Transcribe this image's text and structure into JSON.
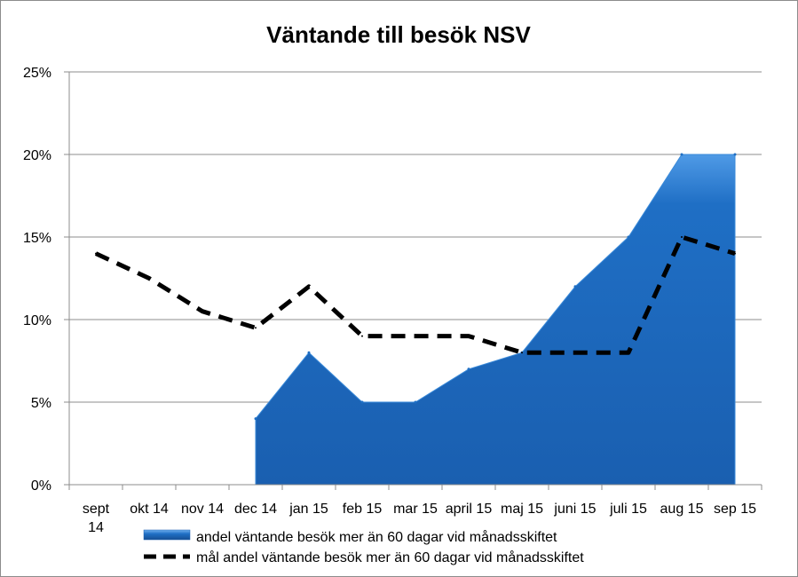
{
  "chart_data": {
    "type": "area",
    "title": "Väntande till besök NSV",
    "categories": [
      [
        "sept",
        "14"
      ],
      [
        "okt 14"
      ],
      [
        "nov 14"
      ],
      [
        "dec 14"
      ],
      [
        "jan 15"
      ],
      [
        "feb 15"
      ],
      [
        "mar 15"
      ],
      [
        "april 15"
      ],
      [
        "maj 15"
      ],
      [
        "juni 15"
      ],
      [
        "juli 15"
      ],
      [
        "aug 15"
      ],
      [
        "sep 15"
      ]
    ],
    "yticks": [
      "0%",
      "5%",
      "10%",
      "15%",
      "20%",
      "25%"
    ],
    "ylim": [
      0,
      25
    ],
    "grid": true,
    "legend_position": "bottom",
    "series": [
      {
        "name": "andel väntande besök mer än 60 dagar vid månadsskiftet",
        "type": "area",
        "color": "#1f6fc5",
        "values": [
          null,
          null,
          null,
          4,
          8,
          5,
          5,
          7,
          8,
          12,
          15,
          20,
          20
        ]
      },
      {
        "name": "mål andel  väntande besök mer än 60 dagar vid månadsskiftet",
        "type": "line",
        "style": "dashed",
        "color": "#000000",
        "values": [
          14,
          12.5,
          10.5,
          9.5,
          12,
          9,
          9,
          9,
          8,
          8,
          8,
          15,
          14
        ]
      }
    ]
  }
}
